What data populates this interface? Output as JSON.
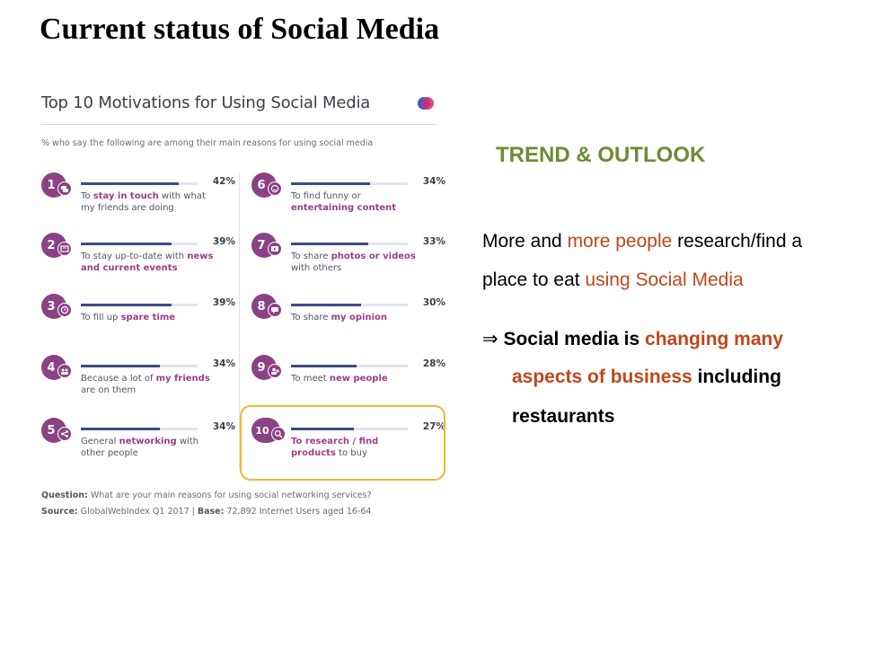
{
  "slide": {
    "title": "Current status of Social Media",
    "trend_heading": "TREND & OUTLOOK",
    "para1_line1": {
      "a": "More and ",
      "b": "more people",
      "c": " research/find  a"
    },
    "para1_line2": {
      "a": "place to eat ",
      "b": "using Social Media"
    },
    "para2_line1": {
      "arrow": "⇒",
      "a": " Social media is ",
      "b": "changing many"
    },
    "para2_line2": {
      "b": "aspects of business",
      "c": " including"
    },
    "para2_line3": "restaurants",
    "colors": {
      "accent_green": "#6b8c35",
      "accent_orange": "#c0461a"
    }
  },
  "chart_data": {
    "type": "bar",
    "title": "Top 10 Motivations for Using Social Media",
    "subtitle": "% who say the following are among their main reasons for using social media",
    "unit": "%",
    "ylim": [
      0,
      100
    ],
    "categories": [
      "To stay in touch with what my friends are doing",
      "To stay up-to-date with news and current events",
      "To fill up spare time",
      "Because a lot of my friends are on them",
      "General networking with other people",
      "To find funny or entertaining content",
      "To share photos or videos with others",
      "To share my opinion",
      "To meet new people",
      "To research / find products to buy"
    ],
    "values": [
      42,
      39,
      39,
      34,
      34,
      34,
      33,
      30,
      28,
      27
    ],
    "value_labels": [
      "42%",
      "39%",
      "39%",
      "34%",
      "34%",
      "34%",
      "33%",
      "30%",
      "28%",
      "27%"
    ],
    "ranks": [
      "1",
      "2",
      "3",
      "4",
      "5",
      "6",
      "7",
      "8",
      "9",
      "10"
    ],
    "icons": [
      "chat-icon",
      "news-icon",
      "clock-icon",
      "group-icon",
      "network-icon",
      "smiley-icon",
      "video-icon",
      "comment-icon",
      "add-user-icon",
      "search-icon"
    ],
    "label_parts": [
      [
        {
          "t": "To "
        },
        {
          "t": "stay in touch",
          "h": true
        },
        {
          "t": " with what my friends are doing"
        }
      ],
      [
        {
          "t": "To stay up-to-date with "
        },
        {
          "t": "news and current events",
          "h": true
        }
      ],
      [
        {
          "t": "To fill up "
        },
        {
          "t": "spare time",
          "h": true
        }
      ],
      [
        {
          "t": "Because a lot of "
        },
        {
          "t": "my friends",
          "h": true
        },
        {
          "t": " are on them"
        }
      ],
      [
        {
          "t": "General "
        },
        {
          "t": "networking",
          "h": true
        },
        {
          "t": " with other people"
        }
      ],
      [
        {
          "t": "To find funny or "
        },
        {
          "t": "entertaining content",
          "h": true
        }
      ],
      [
        {
          "t": "To share "
        },
        {
          "t": "photos or videos",
          "h": true
        },
        {
          "t": " with others"
        }
      ],
      [
        {
          "t": "To share "
        },
        {
          "t": "my opinion",
          "h": true
        }
      ],
      [
        {
          "t": "To meet "
        },
        {
          "t": "new people",
          "h": true
        }
      ],
      [
        {
          "t": "To research / find products",
          "h": true
        },
        {
          "t": " to buy"
        }
      ]
    ],
    "highlighted_item": "10",
    "footer": {
      "question_label": "Question:",
      "question_text": " What are your main reasons for using social networking services?",
      "source_label": "Source:",
      "source_text": " GlobalWebIndex Q1 2017  |  ",
      "base_label": "Base:",
      "base_text": " 72,892 Internet Users aged 16-64"
    },
    "colors": {
      "badge": "#8b4285",
      "bar": "#3d4b86",
      "track": "#e3e4ec",
      "highlight_text": "#9c3d8d",
      "highlight_box": "#f2b632"
    }
  }
}
